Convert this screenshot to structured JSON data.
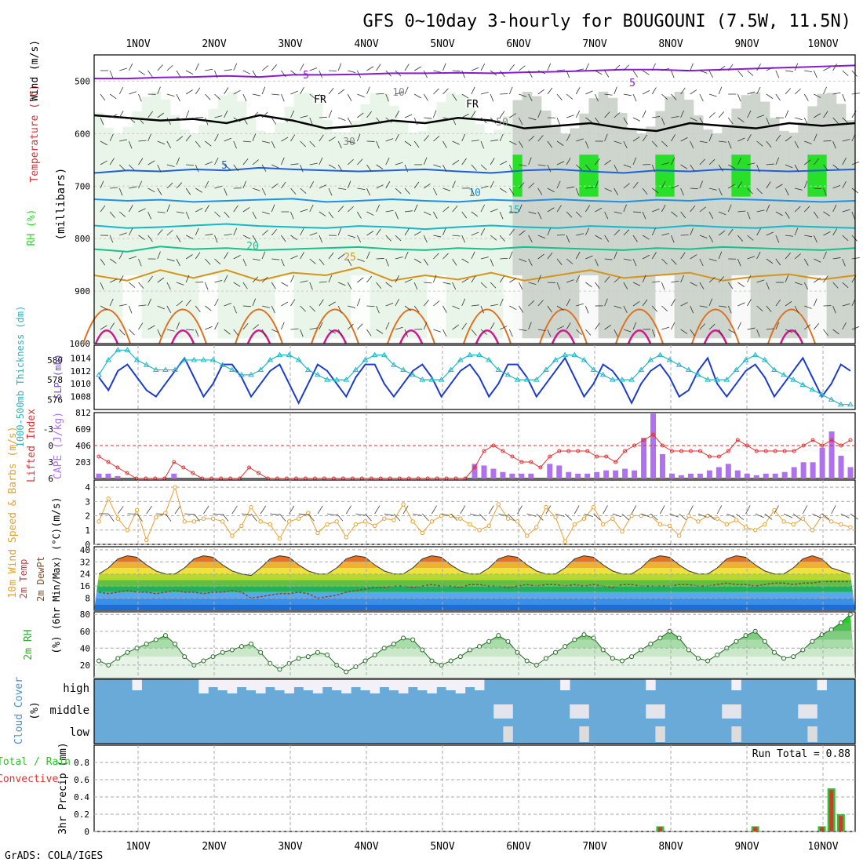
{
  "title": "GFS 0~10day 3-hourly for BOUGOUNI (7.5W, 11.5N)",
  "footer": "GrADS: COLA/IGES",
  "colors": {
    "rh_light": "#e6f4e6",
    "rh_mid": "#b8d8b8",
    "rh_dark": "#c8d0c8",
    "rh_bright": "#28e028",
    "fr_line": "#000000",
    "temp5": "#8a1ad6",
    "temp5b": "#1f5fdc",
    "temp10": "#1e90e8",
    "temp15": "#18b6c8",
    "temp20": "#18c090",
    "temp25": "#d4941e",
    "temp30": "#e07020",
    "temp35": "#d01890",
    "thickness": "#1c3ccc",
    "slp": "#20b8c8",
    "lifted": "#e03030",
    "cape": "#b070f0",
    "wind": "#e8a030",
    "rh2m": "#30b030",
    "cloud": "#6aaad8",
    "precip_total": "#30c030",
    "precip_conv": "#e03030"
  },
  "chart_data": [
    {
      "type": "heatmap",
      "panel": "upper_air",
      "ylabel_parts": [
        "RH (%)",
        "Temperature (°C)",
        "Wind (m/s)"
      ],
      "ylabel_units": "(millibars)",
      "x_labels": [
        "1NOV",
        "2NOV",
        "3NOV",
        "4NOV",
        "5NOV",
        "6NOV",
        "7NOV",
        "8NOV",
        "9NOV",
        "10NOV"
      ],
      "y_ticks": [
        500,
        600,
        700,
        800,
        900,
        1000
      ],
      "ylim": [
        450,
        1000
      ],
      "contour_labels": [
        "5",
        "FR",
        "10",
        "30",
        "50",
        "5",
        "10",
        "15",
        "20",
        "25",
        "FR",
        "5"
      ],
      "isotherms": [
        {
          "label": "-5",
          "level": [
            495,
            495,
            493,
            492,
            490,
            492,
            488,
            488,
            487,
            485,
            485,
            484,
            485,
            483,
            482,
            480,
            478,
            478,
            480,
            478,
            476,
            474,
            472,
            470
          ]
        },
        {
          "label": "FR",
          "level": [
            565,
            570,
            575,
            572,
            580,
            565,
            575,
            590,
            585,
            575,
            580,
            570,
            575,
            590,
            585,
            580,
            590,
            595,
            580,
            585,
            590,
            580,
            585,
            580
          ]
        },
        {
          "label": "5",
          "level": [
            675,
            670,
            672,
            668,
            670,
            665,
            668,
            670,
            672,
            670,
            668,
            672,
            675,
            670,
            668,
            672,
            675,
            670,
            672,
            668,
            670,
            672,
            670,
            668
          ]
        },
        {
          "label": "10",
          "level": [
            725,
            728,
            726,
            730,
            728,
            726,
            724,
            730,
            728,
            725,
            728,
            730,
            726,
            728,
            725,
            728,
            730,
            726,
            728,
            724,
            726,
            728,
            730,
            728
          ]
        },
        {
          "label": "15",
          "level": [
            775,
            780,
            778,
            775,
            772,
            776,
            778,
            780,
            776,
            778,
            782,
            778,
            775,
            778,
            780,
            776,
            778,
            780,
            775,
            778,
            780,
            776,
            778,
            780
          ]
        },
        {
          "label": "20",
          "level": [
            820,
            825,
            815,
            820,
            818,
            822,
            820,
            818,
            816,
            820,
            822,
            818,
            820,
            816,
            818,
            820,
            822,
            818,
            820,
            816,
            818,
            820,
            822,
            818
          ]
        },
        {
          "label": "25",
          "level": [
            870,
            880,
            860,
            875,
            860,
            880,
            865,
            870,
            855,
            880,
            870,
            878,
            865,
            880,
            870,
            860,
            875,
            870,
            865,
            880,
            872,
            868,
            878,
            870
          ]
        }
      ]
    },
    {
      "type": "line",
      "panel": "thickness_slp",
      "ylabel_left": "1000-500mb Thickness (dm)",
      "ylabel_right": "SLP (mb)",
      "y_left_ticks": [
        576,
        578,
        580
      ],
      "y_right_ticks": [
        1008,
        1010,
        1012,
        1014
      ],
      "ylim_left": [
        575,
        581.5
      ],
      "ylim_right": [
        1006,
        1016
      ],
      "series": [
        {
          "name": "SLP",
          "axis": "right",
          "values": [
            1011,
            1009,
            1012,
            1013,
            1011,
            1009,
            1008,
            1010,
            1012,
            1014,
            1011,
            1008,
            1010,
            1013,
            1013,
            1011,
            1008,
            1010,
            1012,
            1013,
            1010,
            1007,
            1010,
            1013,
            1012,
            1010,
            1008,
            1011,
            1013,
            1013,
            1010,
            1008,
            1010,
            1012,
            1013,
            1011,
            1008,
            1010,
            1012,
            1013,
            1011,
            1008,
            1010,
            1013,
            1013,
            1011,
            1008,
            1010,
            1012,
            1014,
            1011,
            1008,
            1010,
            1013,
            1012,
            1010,
            1007,
            1010,
            1012,
            1013,
            1011,
            1008,
            1009,
            1012,
            1014,
            1010,
            1008,
            1010,
            1012,
            1013,
            1011,
            1008,
            1010,
            1012,
            1014,
            1011,
            1008,
            1010,
            1013,
            1012
          ]
        },
        {
          "name": "Thickness",
          "axis": "left",
          "values": [
            578.5,
            580,
            581,
            581,
            580,
            579.5,
            579,
            579,
            579,
            580,
            580,
            580,
            580,
            579.5,
            579,
            578.5,
            578.5,
            579,
            580,
            580.5,
            580.5,
            580,
            579,
            578.5,
            578,
            578,
            578,
            579,
            580,
            580.5,
            580.5,
            579.5,
            579,
            578.5,
            578,
            578,
            578,
            579,
            580,
            580.5,
            580.5,
            580,
            579,
            578.5,
            578,
            578,
            578,
            579,
            580,
            580.5,
            580.5,
            580,
            579,
            578.5,
            578,
            578,
            578,
            579,
            580,
            580.5,
            580,
            579.5,
            579,
            578.5,
            578,
            578,
            578,
            579,
            580,
            580.5,
            580,
            579,
            578.5,
            578,
            577.5,
            577,
            576.5,
            576,
            575.5,
            575.5
          ]
        }
      ]
    },
    {
      "type": "bar",
      "panel": "lifted_cape",
      "ylabel_left": "Lifted Index",
      "ylabel_right": "CAPE (J/kg)",
      "y_left_ticks": [
        -3,
        0,
        3,
        6
      ],
      "y_right_ticks": [
        203,
        406,
        609,
        812
      ],
      "ylim_left": [
        -6,
        6
      ],
      "series": [
        {
          "name": "CAPE",
          "values": [
            60,
            60,
            30,
            0,
            0,
            0,
            0,
            0,
            60,
            0,
            0,
            0,
            0,
            0,
            0,
            0,
            0,
            0,
            0,
            0,
            0,
            0,
            0,
            0,
            0,
            0,
            0,
            0,
            0,
            0,
            0,
            0,
            0,
            0,
            0,
            0,
            0,
            0,
            0,
            0,
            180,
            160,
            120,
            80,
            60,
            60,
            60,
            0,
            180,
            160,
            80,
            60,
            60,
            80,
            100,
            100,
            120,
            100,
            500,
            800,
            300,
            60,
            40,
            60,
            60,
            100,
            140,
            180,
            100,
            60,
            40,
            60,
            60,
            80,
            140,
            200,
            200,
            380,
            580,
            280,
            140
          ]
        },
        {
          "name": "Lifted Index",
          "values": [
            2,
            3,
            4,
            5,
            6,
            6,
            6,
            6,
            3,
            4,
            5,
            6,
            6,
            6,
            6,
            6,
            4,
            5,
            6,
            6,
            6,
            6,
            6,
            6,
            6,
            6,
            6,
            6,
            6,
            6,
            6,
            6,
            6,
            6,
            6,
            6,
            6,
            6,
            6,
            6,
            4,
            1,
            0,
            1,
            2,
            3,
            3,
            4,
            2,
            1,
            1,
            1,
            1,
            2,
            2,
            3,
            1,
            0,
            -1,
            -2,
            0,
            1,
            1,
            1,
            1,
            2,
            2,
            1,
            -1,
            0,
            1,
            1,
            1,
            1,
            1,
            0,
            -1,
            0,
            -1,
            0,
            -1
          ]
        }
      ]
    },
    {
      "type": "line",
      "panel": "wind10m",
      "ylabel": "10m Wind Speed & Barbs (m/s)",
      "y_ticks": [
        0,
        1,
        2,
        3,
        4
      ],
      "ylim": [
        0,
        4.5
      ],
      "values": [
        1.6,
        3.2,
        1.8,
        1.0,
        2.4,
        0.3,
        1.9,
        2.2,
        4.0,
        1.6,
        1.6,
        1.8,
        1.8,
        1.6,
        0.6,
        1.3,
        2.6,
        1.6,
        1.4,
        0.4,
        1.6,
        1.8,
        2.2,
        0.8,
        1.4,
        1.6,
        0.5,
        1.4,
        1.6,
        1.3,
        1.8,
        1.7,
        2.8,
        1.6,
        0.8,
        1.6,
        2.0,
        2.0,
        1.8,
        1.4,
        1.0,
        1.3,
        2.8,
        1.8,
        1.6,
        0.6,
        1.2,
        2.6,
        1.9,
        0.2,
        1.4,
        1.8,
        2.6,
        1.4,
        1.8,
        0.9,
        2.0,
        2.0,
        2.0,
        1.4,
        1.3,
        0.6,
        2.0,
        1.6,
        2.0,
        1.8,
        1.4,
        1.7,
        1.2,
        1.0,
        1.4,
        2.4,
        1.6,
        1.4,
        1.8,
        1.0,
        2.0,
        1.6,
        1.4,
        1.2
      ]
    },
    {
      "type": "area",
      "panel": "temp2m",
      "ylabel": "2m Temp 2m DewPt (6hr Min/Max) (°C)",
      "y_ticks": [
        8,
        16,
        24,
        32,
        40
      ],
      "ylim": [
        0,
        42
      ],
      "series": [
        {
          "name": "Temp",
          "values": [
            24,
            28,
            34,
            36,
            35,
            30,
            26,
            24,
            24,
            28,
            34,
            36,
            35,
            30,
            26,
            24,
            23,
            28,
            34,
            36,
            35,
            30,
            26,
            24,
            24,
            28,
            34,
            36,
            35,
            30,
            26,
            24,
            24,
            28,
            34,
            36,
            35,
            30,
            26,
            24,
            24,
            28,
            34,
            36,
            35,
            30,
            26,
            24,
            24,
            28,
            34,
            36,
            35,
            30,
            26,
            24,
            24,
            28,
            34,
            36,
            35,
            30,
            26,
            24,
            24,
            28,
            34,
            36,
            35,
            30,
            26,
            24,
            24,
            28,
            34,
            36,
            34,
            28,
            26,
            24
          ]
        },
        {
          "name": "DewPt",
          "values": [
            12,
            11,
            12,
            13,
            12,
            12,
            11,
            12,
            13,
            12,
            12,
            11,
            12,
            12,
            13,
            12,
            8,
            9,
            10,
            11,
            11,
            12,
            11,
            8,
            9,
            10,
            12,
            13,
            14,
            15,
            15,
            16,
            16,
            15,
            16,
            17,
            16,
            16,
            15,
            17,
            17,
            16,
            16,
            15,
            16,
            17,
            16,
            17,
            17,
            16,
            17,
            16,
            17,
            16,
            15,
            17,
            17,
            16,
            16,
            16,
            16,
            17,
            17,
            16,
            16,
            17,
            18,
            17,
            17,
            16,
            17,
            18,
            18,
            17,
            18,
            18,
            19,
            19,
            19,
            19
          ]
        }
      ]
    },
    {
      "type": "area",
      "panel": "rh2m",
      "ylabel": "2m RH (%)",
      "y_ticks": [
        20,
        40,
        60,
        80
      ],
      "ylim": [
        5,
        83
      ],
      "values": [
        25,
        20,
        28,
        35,
        40,
        45,
        50,
        55,
        45,
        30,
        20,
        25,
        30,
        35,
        38,
        42,
        45,
        35,
        22,
        15,
        22,
        28,
        30,
        35,
        32,
        20,
        12,
        18,
        25,
        32,
        40,
        45,
        52,
        50,
        38,
        25,
        20,
        25,
        30,
        38,
        42,
        48,
        55,
        48,
        35,
        25,
        20,
        28,
        35,
        42,
        50,
        56,
        52,
        38,
        28,
        25,
        30,
        38,
        45,
        52,
        60,
        52,
        38,
        28,
        25,
        32,
        40,
        48,
        55,
        60,
        48,
        35,
        28,
        30,
        38,
        48,
        56,
        62,
        70,
        80
      ]
    },
    {
      "type": "heatmap",
      "panel": "cloud_cover",
      "ylabel": "Cloud Cover (%)",
      "rows": [
        "high",
        "middle",
        "low"
      ]
    },
    {
      "type": "bar",
      "panel": "precip",
      "ylabel": "3hr Precip (mm)",
      "legend_total": "Total / Rain",
      "legend_conv": "Convective",
      "run_total": "Run Total = 0.88",
      "y_ticks": [
        0,
        0.2,
        0.4,
        0.6,
        0.8
      ],
      "ylim": [
        0,
        1.0
      ],
      "x_labels": [
        "1NOV",
        "2NOV",
        "3NOV",
        "4NOV",
        "5NOV",
        "6NOV",
        "7NOV",
        "8NOV",
        "9NOV",
        "10NOV"
      ],
      "bars": [
        {
          "slot": 59,
          "total": 0.06,
          "conv": 0.05
        },
        {
          "slot": 69,
          "total": 0.06,
          "conv": 0.05
        },
        {
          "slot": 76,
          "total": 0.06,
          "conv": 0.05
        },
        {
          "slot": 77,
          "total": 0.5,
          "conv": 0.48
        },
        {
          "slot": 78,
          "total": 0.2,
          "conv": 0.18
        }
      ]
    }
  ]
}
